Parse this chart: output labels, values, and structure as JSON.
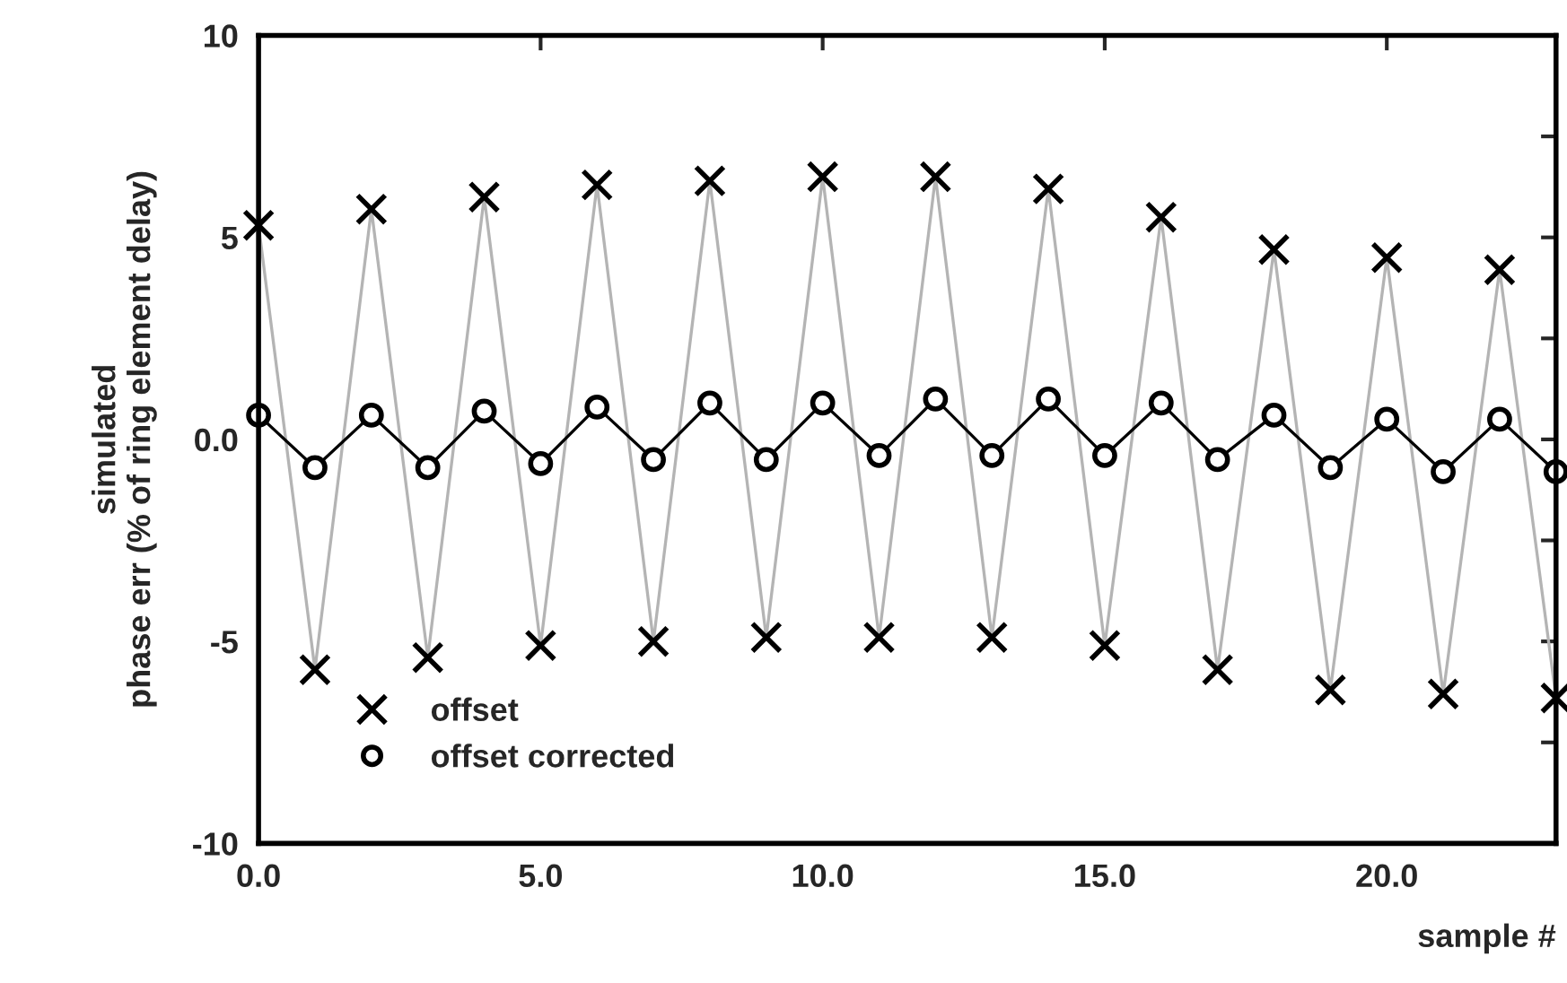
{
  "chart_data": {
    "type": "line",
    "xlabel": "sample #",
    "ylabel": "simulated\nphase err (% of ring element delay)",
    "xlim": [
      0,
      23
    ],
    "ylim": [
      -10,
      10
    ],
    "xticks": [
      {
        "value": 0,
        "label": "0.0"
      },
      {
        "value": 5,
        "label": "5.0"
      },
      {
        "value": 10,
        "label": "10.0"
      },
      {
        "value": 15,
        "label": "15.0"
      },
      {
        "value": 20,
        "label": "20.0"
      }
    ],
    "yticks": [
      -10,
      {
        "value": -7.5,
        "label": null
      },
      -5,
      {
        "value": -2.5,
        "label": null
      },
      {
        "value": 0,
        "label": "0.0"
      },
      {
        "value": 2.5,
        "label": null
      },
      5,
      {
        "value": 7.5,
        "label": null
      },
      10
    ],
    "x": [
      0,
      1,
      2,
      3,
      4,
      5,
      6,
      7,
      8,
      9,
      10,
      11,
      12,
      13,
      14,
      15,
      16,
      17,
      18,
      19,
      20,
      21,
      22,
      23
    ],
    "series": [
      {
        "name": "offset",
        "color": "#b4b4b4",
        "marker": "cross",
        "values": [
          5.3,
          -5.7,
          5.7,
          -5.4,
          6.0,
          -5.1,
          6.3,
          -5.0,
          6.4,
          -4.9,
          6.5,
          -4.9,
          6.5,
          -4.9,
          6.2,
          -5.1,
          5.5,
          -5.7,
          4.7,
          -6.2,
          4.5,
          -6.3,
          4.2,
          -6.4
        ]
      },
      {
        "name": "offset corrected",
        "color": "#000000",
        "marker": "circle",
        "values": [
          0.6,
          -0.7,
          0.6,
          -0.7,
          0.7,
          -0.6,
          0.8,
          -0.5,
          0.9,
          -0.5,
          0.9,
          -0.4,
          1.0,
          -0.4,
          1.0,
          -0.4,
          0.9,
          -0.5,
          0.6,
          -0.7,
          0.5,
          -0.8,
          0.5,
          -0.8
        ]
      }
    ],
    "legend": "bottom left",
    "grid": false
  }
}
